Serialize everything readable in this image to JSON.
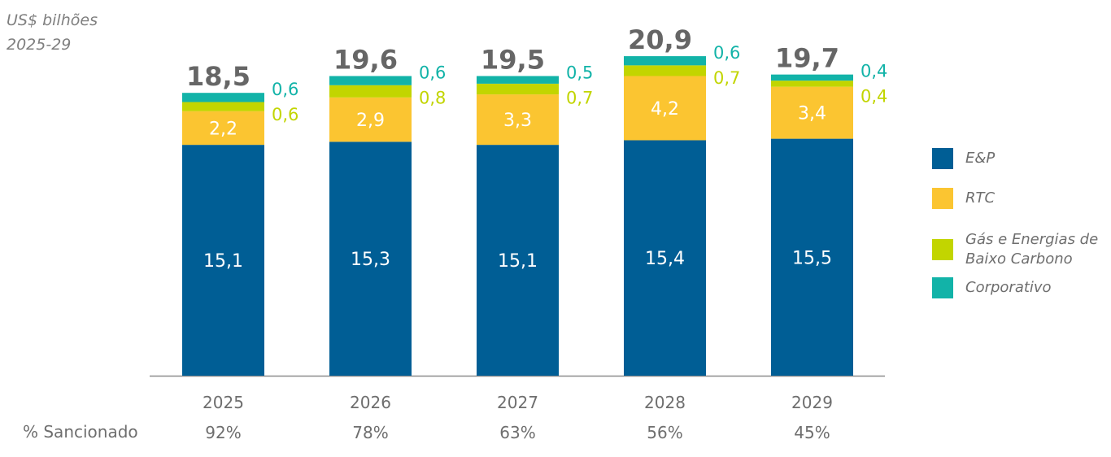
{
  "unit_line1": "US$ bilhões",
  "unit_line2": "2025-29",
  "sanctioned_label": "% Sancionado",
  "chart_data": {
    "type": "bar",
    "stacked": true,
    "categories": [
      "2025",
      "2026",
      "2027",
      "2028",
      "2029"
    ],
    "series": [
      {
        "name": "E&P",
        "color": "#005e95",
        "values": [
          15.1,
          15.3,
          15.1,
          15.4,
          15.5
        ],
        "labels": [
          "15,1",
          "15,3",
          "15,1",
          "15,4",
          "15,5"
        ]
      },
      {
        "name": "RTC",
        "color": "#fbc531",
        "values": [
          2.2,
          2.9,
          3.3,
          4.2,
          3.4
        ],
        "labels": [
          "2,2",
          "2,9",
          "3,3",
          "4,2",
          "3,4"
        ]
      },
      {
        "name": "Gás e Energias de Baixo Carbono",
        "color": "#c2d500",
        "values": [
          0.6,
          0.8,
          0.7,
          0.7,
          0.4
        ],
        "labels": [
          "0,6",
          "0,8",
          "0,7",
          "0,7",
          "0,4"
        ]
      },
      {
        "name": "Corporativo",
        "color": "#12b3a8",
        "values": [
          0.6,
          0.6,
          0.5,
          0.6,
          0.4
        ],
        "labels": [
          "0,6",
          "0,6",
          "0,5",
          "0,6",
          "0,4"
        ]
      }
    ],
    "totals": [
      "18,5",
      "19,6",
      "19,5",
      "20,9",
      "19,7"
    ],
    "sanctioned": [
      "92%",
      "78%",
      "63%",
      "56%",
      "45%"
    ],
    "legend_lines": [
      [
        "E&P"
      ],
      [
        "RTC"
      ],
      [
        "Gás e Energias de",
        "Baixo Carbono"
      ],
      [
        "Corporativo"
      ]
    ],
    "legend_position": "right",
    "grid": false
  }
}
